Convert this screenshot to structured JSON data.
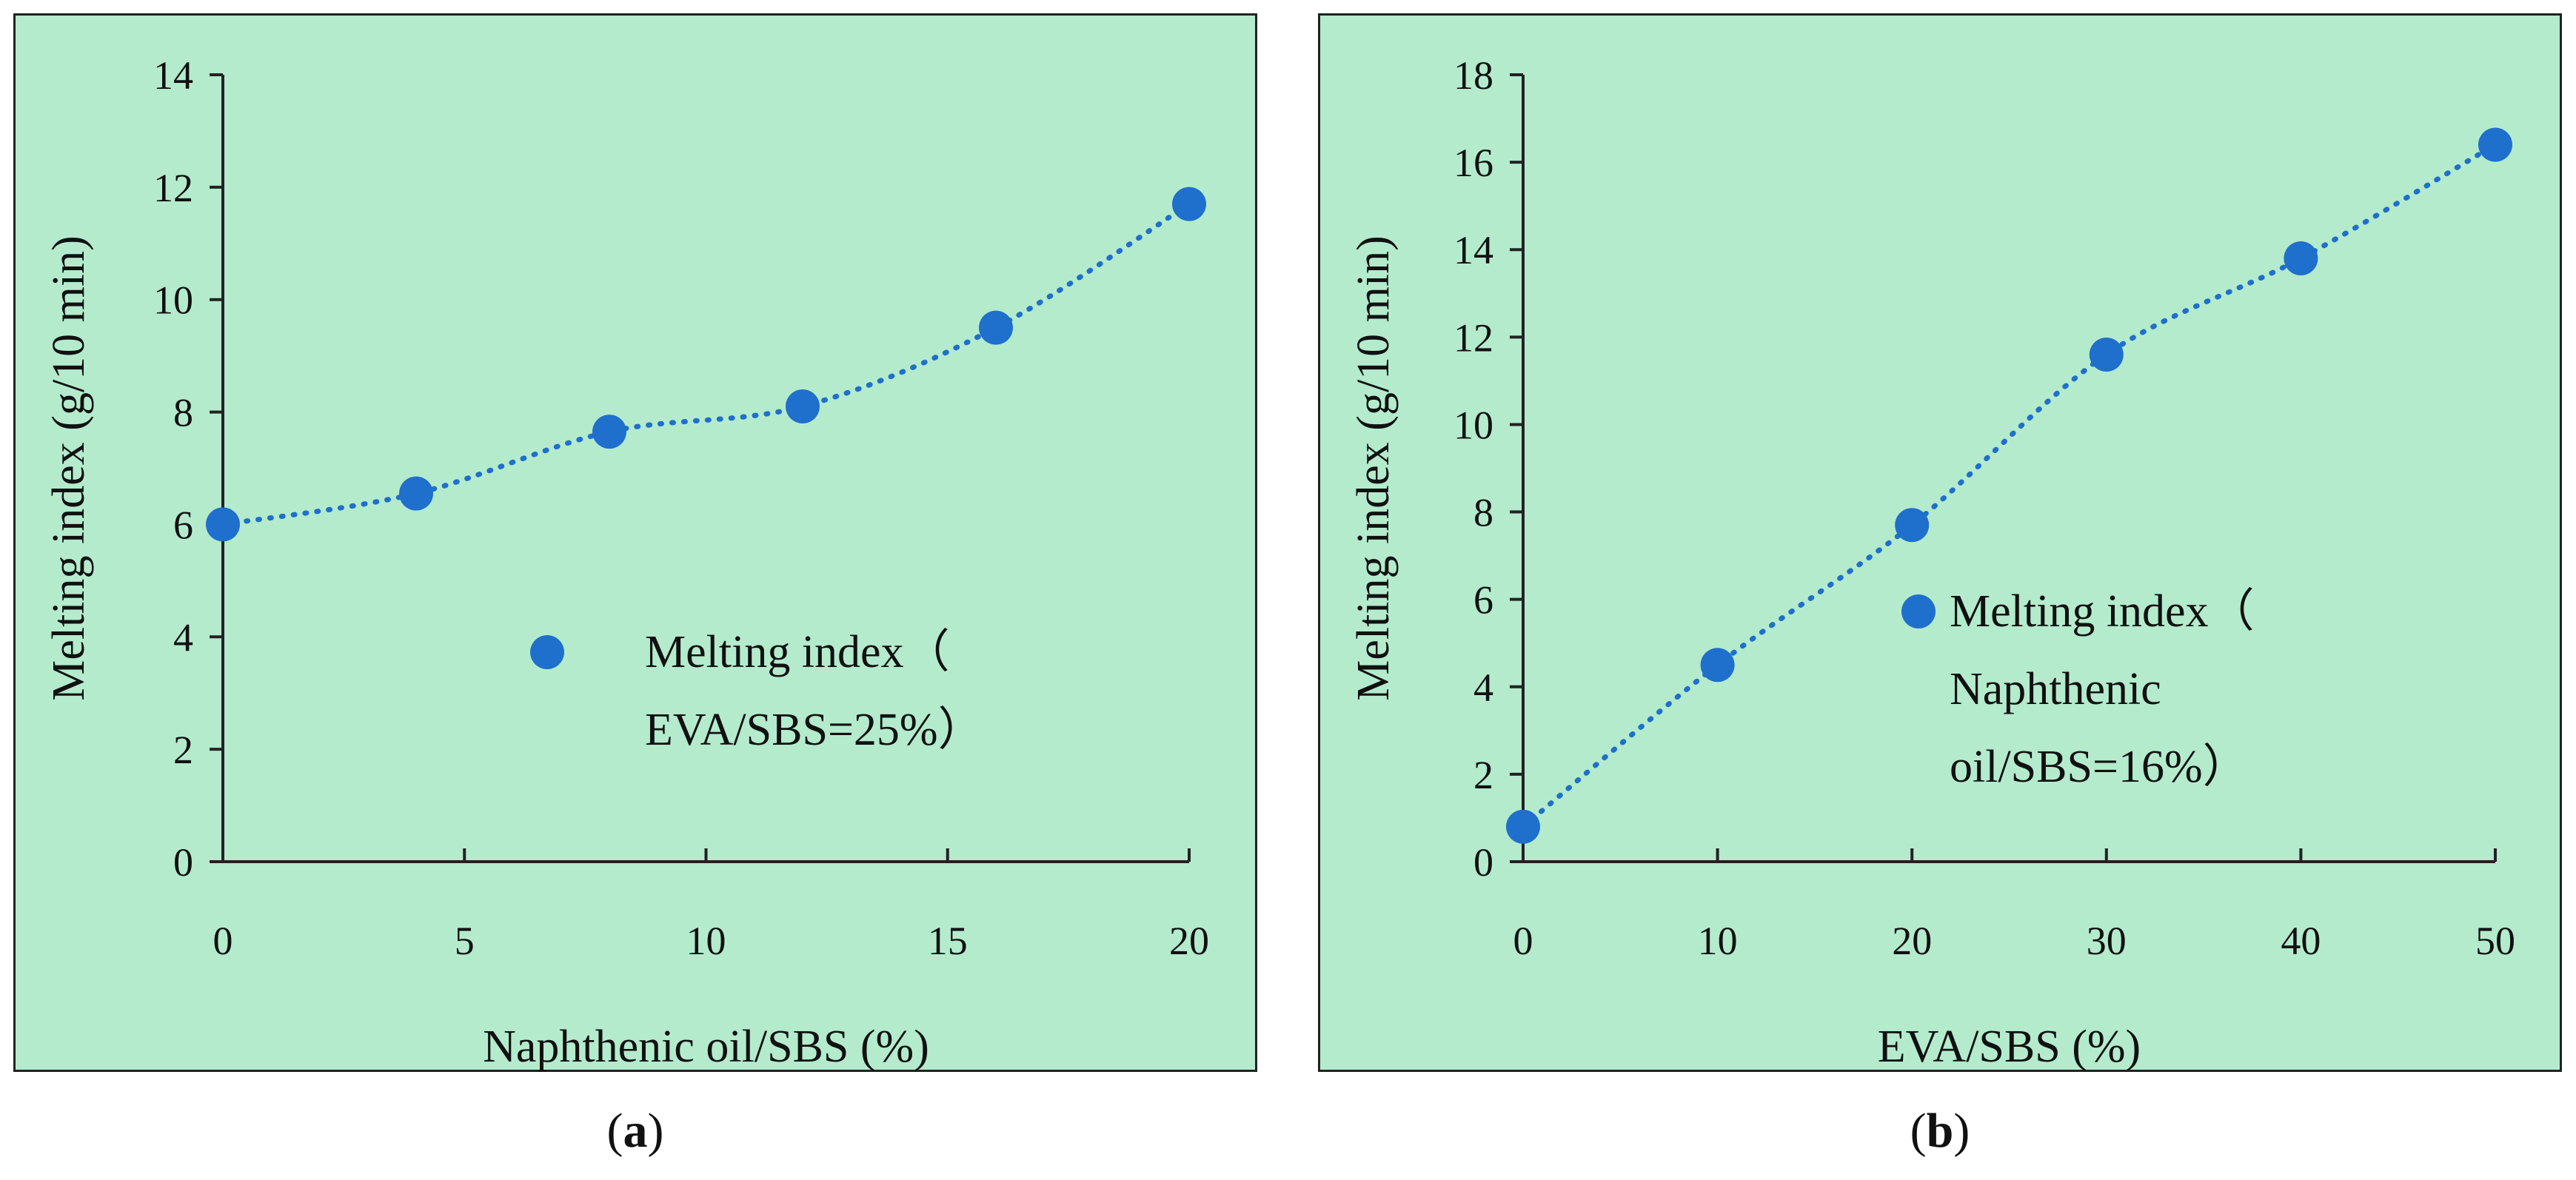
{
  "chart_data": [
    {
      "type": "scatter",
      "panel": "a",
      "title": "",
      "xlabel": "Naphthenic oil/SBS (%)",
      "ylabel": "Melting index (g/10 min)",
      "xlim": [
        0,
        20
      ],
      "ylim": [
        0,
        14
      ],
      "xticks": [
        "0",
        "5",
        "10",
        "15",
        "20"
      ],
      "yticks": [
        "0",
        "2",
        "4",
        "6",
        "8",
        "10",
        "12",
        "14"
      ],
      "series": [
        {
          "name": "Melting index（EVA/SBS=25%）",
          "legend_lines": [
            "Melting index（",
            "EVA/SBS=25%）"
          ],
          "x": [
            0,
            4,
            8,
            12,
            16,
            20
          ],
          "values": [
            6.0,
            6.55,
            7.65,
            8.1,
            9.5,
            11.7
          ],
          "trendline": "polynomial, dotted"
        }
      ],
      "legend": "center-right",
      "caption": "a"
    },
    {
      "type": "scatter",
      "panel": "b",
      "title": "",
      "xlabel": "EVA/SBS (%)",
      "ylabel": "Melting index (g/10 min)",
      "xlim": [
        0,
        50
      ],
      "ylim": [
        0,
        18
      ],
      "xticks": [
        "0",
        "10",
        "20",
        "30",
        "40",
        "50"
      ],
      "yticks": [
        "0",
        "2",
        "4",
        "6",
        "8",
        "10",
        "12",
        "14",
        "16",
        "18"
      ],
      "series": [
        {
          "name": "Melting index（Naphthenic oil/SBS=16%）",
          "legend_lines": [
            "Melting index（",
            "Naphthenic",
            "oil/SBS=16%）"
          ],
          "x": [
            0,
            10,
            20,
            30,
            40,
            50
          ],
          "values": [
            0.8,
            4.5,
            7.7,
            11.6,
            13.8,
            16.4
          ],
          "trendline": "polynomial, dotted"
        }
      ],
      "legend": "center",
      "caption": "b"
    }
  ],
  "style": {
    "background": "#b4ebcd",
    "marker": "#1f6fcc",
    "axis": "#222222"
  }
}
